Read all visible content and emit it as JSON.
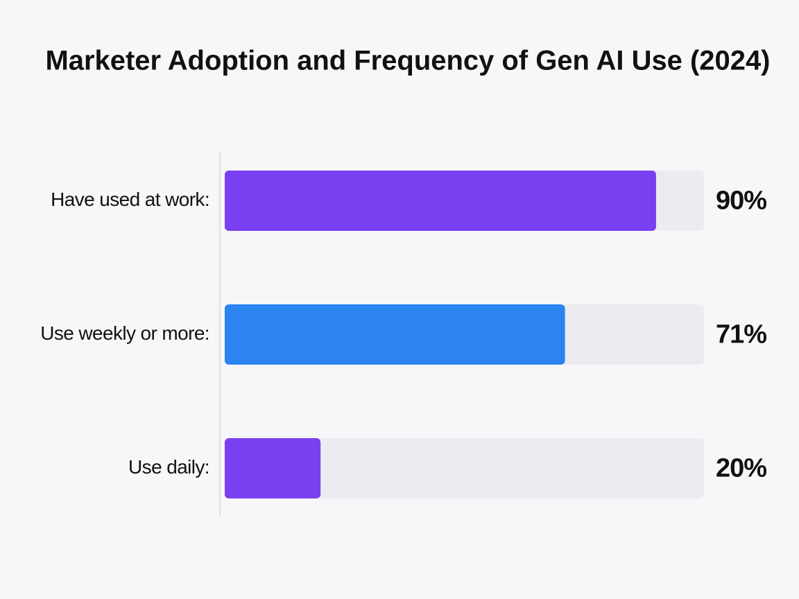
{
  "chart_data": {
    "type": "progress-bar",
    "title": "Marketer Adoption and Frequency of Gen AI Use (2024)",
    "categories": [
      "Have used at work:",
      "Use weekly or more:",
      "Use daily:"
    ],
    "values": [
      90,
      71,
      20
    ],
    "value_labels": [
      "90%",
      "71%",
      "20%"
    ],
    "colors": [
      "#7a3ff0",
      "#2b84f0",
      "#7a3ff0"
    ],
    "track_color": "#ececf0",
    "xlim": [
      0,
      100
    ]
  }
}
